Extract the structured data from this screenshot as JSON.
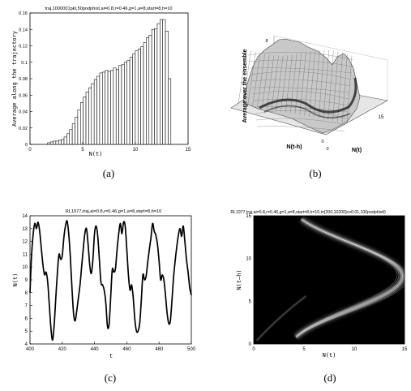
{
  "chart_data": [
    {
      "panel": "a",
      "type": "bar",
      "title": "traj,1000001pkt,50podphist,ai=0.8,r=0.46,g=1,a=8,start=8,h=10",
      "xlabel": "N(t)",
      "ylabel": "Average along the trajectory",
      "xlim": [
        0,
        15
      ],
      "ylim": [
        0,
        0.16
      ],
      "xticks": [
        "0",
        "5",
        "10",
        "15"
      ],
      "yticks": [
        "0",
        "0.02",
        "0.04",
        "0.06",
        "0.08",
        "0.1",
        "0.12",
        "0.14",
        "0.16"
      ],
      "x": [
        1.8,
        2.06,
        2.32,
        2.58,
        2.84,
        3.1,
        3.36,
        3.62,
        3.88,
        4.14,
        4.4,
        4.66,
        4.92,
        5.18,
        5.44,
        5.7,
        5.96,
        6.22,
        6.48,
        6.74,
        7.0,
        7.26,
        7.52,
        7.78,
        8.04,
        8.3,
        8.56,
        8.82,
        9.08,
        9.34,
        9.6,
        9.86,
        10.12,
        10.38,
        10.64,
        10.9,
        11.16,
        11.42,
        11.68,
        11.94,
        12.2,
        12.46,
        12.72,
        12.98,
        13.24
      ],
      "values": [
        0.002,
        0.003,
        0.004,
        0.004,
        0.005,
        0.006,
        0.009,
        0.013,
        0.018,
        0.025,
        0.033,
        0.042,
        0.051,
        0.058,
        0.064,
        0.069,
        0.074,
        0.079,
        0.083,
        0.087,
        0.088,
        0.09,
        0.089,
        0.09,
        0.093,
        0.091,
        0.096,
        0.097,
        0.1,
        0.102,
        0.106,
        0.11,
        0.114,
        0.116,
        0.119,
        0.124,
        0.13,
        0.133,
        0.14,
        0.141,
        0.147,
        0.152,
        0.152,
        0.138,
        0.08
      ]
    },
    {
      "panel": "b",
      "type": "surface",
      "zlabel": "Average over the ensemble",
      "xlabel": "N(t)",
      "ylabel": "N(t-h)",
      "ticks": {
        "z_top": "8",
        "x_end": "15",
        "origin": [
          "0",
          "0"
        ]
      }
    },
    {
      "panel": "c",
      "type": "line",
      "title": "RL1977,traj,ai=0.8,r=0.46,g=1,a=8,start=8,h=10",
      "xlabel": "t",
      "ylabel": "N(t)",
      "xlim": [
        400,
        500
      ],
      "ylim": [
        4,
        14
      ],
      "xticks": [
        "400",
        "420",
        "440",
        "460",
        "480",
        "500"
      ],
      "yticks": [
        "4",
        "5",
        "6",
        "7",
        "8",
        "9",
        "10",
        "11",
        "12",
        "13",
        "14"
      ],
      "x": [
        400,
        401,
        402,
        403,
        404,
        405,
        406,
        407,
        408,
        409,
        410,
        411,
        412,
        413,
        414,
        415,
        416,
        417,
        418,
        419,
        420,
        421,
        422,
        423,
        424,
        425,
        426,
        427,
        428,
        429,
        430,
        431,
        432,
        433,
        434,
        435,
        436,
        437,
        438,
        439,
        440,
        441,
        442,
        443,
        444,
        445,
        446,
        447,
        448,
        449,
        450,
        451,
        452,
        453,
        454,
        455,
        456,
        457,
        458,
        459,
        460,
        461,
        462,
        463,
        464,
        465,
        466,
        467,
        468,
        469,
        470,
        471,
        472,
        473,
        474,
        475,
        476,
        477,
        478,
        479,
        480,
        481,
        482,
        483,
        484,
        485,
        486,
        487,
        488,
        489,
        490,
        491,
        492,
        493,
        494,
        495,
        496,
        497,
        498,
        499,
        500
      ],
      "values": [
        8.0,
        11.0,
        12.6,
        13.4,
        13.0,
        13.5,
        12.8,
        11.5,
        10.2,
        9.4,
        9.6,
        8.8,
        7.0,
        5.2,
        4.3,
        5.5,
        7.6,
        9.6,
        11.0,
        10.6,
        10.9,
        12.3,
        13.2,
        13.6,
        12.6,
        10.8,
        8.4,
        6.4,
        5.8,
        6.6,
        7.6,
        8.6,
        10.0,
        11.4,
        12.6,
        13.0,
        11.8,
        10.2,
        9.5,
        10.6,
        12.6,
        13.2,
        12.4,
        10.6,
        8.8,
        8.6,
        8.2,
        7.2,
        5.4,
        5.5,
        7.6,
        9.8,
        9.6,
        9.9,
        11.4,
        12.6,
        13.4,
        12.6,
        13.5,
        13.2,
        11.4,
        9.4,
        8.2,
        8.6,
        7.6,
        5.9,
        5.0,
        5.0,
        5.6,
        7.4,
        9.4,
        9.0,
        9.3,
        10.4,
        11.4,
        12.3,
        13.4,
        12.8,
        12.5,
        11.8,
        10.5,
        9.0,
        9.4,
        9.0,
        7.8,
        6.4,
        5.6,
        5.8,
        7.4,
        9.2,
        10.5,
        11.6,
        12.5,
        13.0,
        12.4,
        13.2,
        12.0,
        10.6,
        9.6,
        8.4,
        7.8
      ]
    },
    {
      "panel": "d",
      "type": "heatmap",
      "title": "RL1977,traj,ai=0.8,r=0.46,g=1,a=8,start=8,h=10,t=[200,10200]co0.01,100podphist0",
      "xlabel": "N(t)",
      "ylabel": "N(t–h)",
      "xlim": [
        0,
        15
      ],
      "ylim": [
        0,
        15
      ],
      "xticks": [
        "0",
        "5",
        "10",
        "15"
      ],
      "yticks": [
        "0",
        "5",
        "10",
        "15"
      ]
    }
  ],
  "captions": {
    "a": "(a)",
    "b": "(b)",
    "c": "(c)",
    "d": "(d)"
  },
  "colors": {
    "background": "#ffffff",
    "ink": "#000000",
    "bar_fill": "#ffffff",
    "heatmap_bg": "#000000",
    "heatmap_hi": "#ffffff"
  }
}
